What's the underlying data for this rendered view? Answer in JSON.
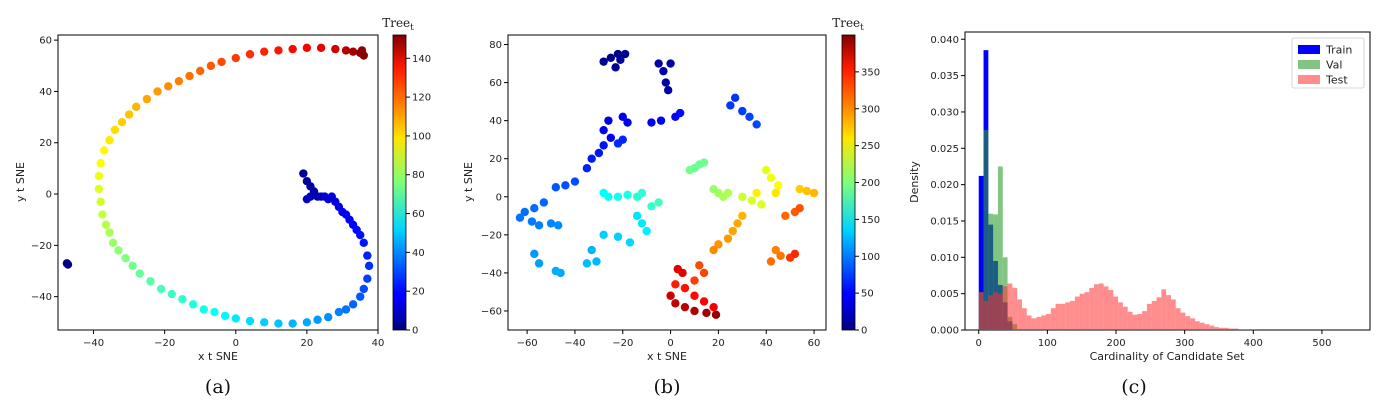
{
  "chart_data": [
    {
      "id": "a",
      "type": "scatter",
      "caption": "(a)",
      "xlabel": "x t SNE",
      "ylabel": "y t SNE",
      "colorbar_label": "Tree_t",
      "xlim": [
        -50,
        40
      ],
      "ylim": [
        -53,
        62
      ],
      "xticks": [
        -40,
        -20,
        0,
        20,
        40
      ],
      "yticks": [
        -40,
        -20,
        0,
        20,
        40,
        60
      ],
      "colorbar_range": [
        0,
        152
      ],
      "colorbar_ticks": [
        0,
        20,
        40,
        60,
        80,
        100,
        120,
        140
      ],
      "colormap": "jet",
      "points": [
        [
          -47.5,
          -27,
          2
        ],
        [
          -47.2,
          -27.5,
          2
        ],
        [
          19,
          8,
          3
        ],
        [
          20,
          5,
          4
        ],
        [
          21,
          3,
          5
        ],
        [
          22,
          1,
          6
        ],
        [
          23,
          -1,
          7
        ],
        [
          24,
          -1,
          8
        ],
        [
          21,
          -1,
          9
        ],
        [
          20,
          -2,
          10
        ],
        [
          25,
          -1,
          11
        ],
        [
          26,
          -2,
          12
        ],
        [
          27,
          -1,
          13
        ],
        [
          28,
          -3,
          14
        ],
        [
          29,
          -5,
          15
        ],
        [
          30,
          -7,
          16
        ],
        [
          31,
          -8,
          17
        ],
        [
          32,
          -10,
          18
        ],
        [
          33,
          -12,
          19
        ],
        [
          34,
          -14,
          20
        ],
        [
          35,
          -16,
          21
        ],
        [
          36,
          -19,
          22
        ],
        [
          37,
          -24,
          24
        ],
        [
          37.5,
          -28,
          26
        ],
        [
          37,
          -33,
          28
        ],
        [
          36,
          -37,
          30
        ],
        [
          35,
          -40,
          32
        ],
        [
          33,
          -43,
          34
        ],
        [
          31,
          -45,
          36
        ],
        [
          29,
          -46,
          38
        ],
        [
          26,
          -48,
          40
        ],
        [
          23,
          -49,
          42
        ],
        [
          20,
          -50,
          44
        ],
        [
          16,
          -50.5,
          46
        ],
        [
          12,
          -50.5,
          48
        ],
        [
          8,
          -50,
          50
        ],
        [
          4,
          -49.5,
          52
        ],
        [
          0,
          -48.5,
          54
        ],
        [
          -3,
          -47.5,
          56
        ],
        [
          -6,
          -46,
          58
        ],
        [
          -9,
          -45,
          60
        ],
        [
          -12,
          -43,
          62
        ],
        [
          -15,
          -41,
          64
        ],
        [
          -18,
          -39,
          66
        ],
        [
          -21,
          -37,
          68
        ],
        [
          -24,
          -34,
          70
        ],
        [
          -27,
          -31,
          72
        ],
        [
          -29,
          -28,
          74
        ],
        [
          -31,
          -25,
          76
        ],
        [
          -33,
          -22,
          78
        ],
        [
          -34.5,
          -19,
          80
        ],
        [
          -35.5,
          -15,
          82
        ],
        [
          -36.5,
          -12,
          84
        ],
        [
          -37.5,
          -8,
          86
        ],
        [
          -38,
          -3,
          88
        ],
        [
          -38.5,
          2,
          90
        ],
        [
          -38.5,
          7,
          92
        ],
        [
          -38,
          12,
          94
        ],
        [
          -37,
          17,
          96
        ],
        [
          -35.5,
          21,
          98
        ],
        [
          -34,
          25,
          100
        ],
        [
          -32,
          28,
          102
        ],
        [
          -30,
          31,
          104
        ],
        [
          -28,
          34,
          106
        ],
        [
          -25,
          37,
          108
        ],
        [
          -22,
          40,
          110
        ],
        [
          -19,
          42,
          112
        ],
        [
          -16,
          44,
          114
        ],
        [
          -13,
          46,
          116
        ],
        [
          -10,
          48,
          118
        ],
        [
          -7,
          50,
          120
        ],
        [
          -4,
          51.5,
          122
        ],
        [
          0,
          53,
          124
        ],
        [
          4,
          54.5,
          126
        ],
        [
          8,
          55.5,
          128
        ],
        [
          12,
          56,
          130
        ],
        [
          16,
          56.5,
          132
        ],
        [
          20,
          57,
          134
        ],
        [
          24,
          57,
          136
        ],
        [
          28,
          56.5,
          140
        ],
        [
          31,
          56,
          144
        ],
        [
          33,
          55.5,
          147
        ],
        [
          35,
          55,
          150
        ],
        [
          36,
          54,
          151
        ],
        [
          35.5,
          56,
          150
        ]
      ]
    },
    {
      "id": "b",
      "type": "scatter",
      "caption": "(b)",
      "xlabel": "x t SNE",
      "ylabel": "y t SNE",
      "colorbar_label": "Tree_t",
      "xlim": [
        -68,
        65
      ],
      "ylim": [
        -70,
        85
      ],
      "xticks": [
        -60,
        -40,
        -20,
        0,
        20,
        40,
        60
      ],
      "yticks": [
        -60,
        -40,
        -20,
        0,
        20,
        40,
        60,
        80
      ],
      "colorbar_range": [
        0,
        400
      ],
      "colorbar_ticks": [
        0,
        50,
        100,
        150,
        200,
        250,
        300,
        350
      ],
      "colormap": "jet",
      "points": [
        [
          -25,
          73,
          5
        ],
        [
          -28,
          71,
          8
        ],
        [
          -22,
          75,
          6
        ],
        [
          -19,
          75,
          7
        ],
        [
          -23,
          68,
          9
        ],
        [
          -21,
          72,
          10
        ],
        [
          -5,
          70,
          12
        ],
        [
          -3,
          66,
          14
        ],
        [
          -2,
          60,
          16
        ],
        [
          -1,
          56,
          15
        ],
        [
          0,
          70,
          11
        ],
        [
          -20,
          42,
          40
        ],
        [
          -18,
          39,
          42
        ],
        [
          -26,
          40,
          38
        ],
        [
          -28,
          35,
          44
        ],
        [
          -25,
          31,
          46
        ],
        [
          -8,
          39,
          48
        ],
        [
          -4,
          40,
          50
        ],
        [
          2,
          42,
          52
        ],
        [
          4,
          44,
          54
        ],
        [
          -28,
          27,
          56
        ],
        [
          -30,
          23,
          58
        ],
        [
          -33,
          20,
          60
        ],
        [
          -35,
          15,
          62
        ],
        [
          -20,
          30,
          64
        ],
        [
          -22,
          28,
          66
        ],
        [
          27,
          52,
          70
        ],
        [
          25,
          48,
          72
        ],
        [
          30,
          45,
          74
        ],
        [
          33,
          42,
          76
        ],
        [
          36,
          38,
          78
        ],
        [
          -40,
          8,
          80
        ],
        [
          -44,
          6,
          82
        ],
        [
          -48,
          5,
          84
        ],
        [
          -53,
          -3,
          90
        ],
        [
          -57,
          -6,
          92
        ],
        [
          -61,
          -8,
          94
        ],
        [
          -63,
          -11,
          96
        ],
        [
          -58,
          -13,
          98
        ],
        [
          -55,
          -15,
          100
        ],
        [
          -50,
          -14,
          102
        ],
        [
          -47,
          -15,
          104
        ],
        [
          -57,
          -30,
          110
        ],
        [
          -55,
          -35,
          112
        ],
        [
          -46,
          -40,
          116
        ],
        [
          -48,
          -39,
          118
        ],
        [
          -33,
          -28,
          120
        ],
        [
          -31,
          -34,
          122
        ],
        [
          -35,
          -35,
          124
        ],
        [
          -28,
          -20,
          130
        ],
        [
          -22,
          -21,
          132
        ],
        [
          -17,
          -24,
          134
        ],
        [
          -14,
          -10,
          140
        ],
        [
          -12,
          -14,
          142
        ],
        [
          -10,
          -18,
          144
        ],
        [
          -28,
          2,
          150
        ],
        [
          -26,
          0,
          152
        ],
        [
          -22,
          0,
          156
        ],
        [
          -18,
          1,
          160
        ],
        [
          -14,
          0,
          166
        ],
        [
          -12,
          2,
          168
        ],
        [
          -8,
          -5,
          172
        ],
        [
          -5,
          -3,
          176
        ],
        [
          10,
          15,
          190
        ],
        [
          12,
          17,
          192
        ],
        [
          14,
          18,
          194
        ],
        [
          8,
          14,
          196
        ],
        [
          18,
          4,
          210
        ],
        [
          20,
          2,
          214
        ],
        [
          22,
          0,
          216
        ],
        [
          24,
          2,
          218
        ],
        [
          30,
          0,
          230
        ],
        [
          34,
          -2,
          234
        ],
        [
          38,
          -4,
          236
        ],
        [
          40,
          14,
          240
        ],
        [
          42,
          10,
          244
        ],
        [
          45,
          6,
          248
        ],
        [
          36,
          2,
          256
        ],
        [
          44,
          2,
          260
        ],
        [
          54,
          4,
          270
        ],
        [
          57,
          3,
          274
        ],
        [
          60,
          2,
          278
        ],
        [
          30,
          -10,
          280
        ],
        [
          28,
          -14,
          284
        ],
        [
          26,
          -18,
          286
        ],
        [
          24,
          -22,
          290
        ],
        [
          20,
          -25,
          292
        ],
        [
          18,
          -28,
          296
        ],
        [
          44,
          -28,
          300
        ],
        [
          46,
          -31,
          304
        ],
        [
          42,
          -34,
          306
        ],
        [
          48,
          -10,
          310
        ],
        [
          52,
          -8,
          314
        ],
        [
          54,
          -6,
          318
        ],
        [
          12,
          -36,
          320
        ],
        [
          14,
          -40,
          324
        ],
        [
          10,
          -44,
          326
        ],
        [
          50,
          -32,
          330
        ],
        [
          52,
          -30,
          334
        ],
        [
          2,
          -46,
          340
        ],
        [
          6,
          -48,
          344
        ],
        [
          10,
          -52,
          346
        ],
        [
          14,
          -55,
          350
        ],
        [
          18,
          -58,
          354
        ],
        [
          3,
          -38,
          360
        ],
        [
          5,
          -40,
          364
        ],
        [
          0,
          -52,
          370
        ],
        [
          2,
          -56,
          374
        ],
        [
          6,
          -58,
          378
        ],
        [
          10,
          -60,
          382
        ],
        [
          15,
          -61,
          386
        ],
        [
          19,
          -62,
          390
        ]
      ]
    },
    {
      "id": "c",
      "type": "bar",
      "caption": "(c)",
      "xlabel": "Cardinality of Candidate Set",
      "ylabel": "Density",
      "xlim": [
        -20,
        570
      ],
      "ylim": [
        0,
        0.041
      ],
      "xticks": [
        0,
        100,
        200,
        300,
        400,
        500
      ],
      "yticks": [
        0.0,
        0.005,
        0.01,
        0.015,
        0.02,
        0.025,
        0.03,
        0.035,
        0.04
      ],
      "ytick_labels": [
        "0.000",
        "0.005",
        "0.010",
        "0.015",
        "0.020",
        "0.025",
        "0.030",
        "0.035",
        "0.040"
      ],
      "legend_position": "top-right",
      "series": [
        {
          "name": "Train",
          "color": "#0000ff",
          "alpha": 1.0,
          "bin_width": 7,
          "bin_start": 0,
          "values": [
            0.0212,
            0.0385,
            0.0145,
            0.0095,
            0.0062,
            0.0038,
            0.0012
          ]
        },
        {
          "name": "Val",
          "color": "#2e9c2e",
          "alpha": 0.6,
          "bin_width": 7,
          "bin_start": 0,
          "values": [
            0.0052,
            0.0275,
            0.016,
            0.0159,
            0.0225,
            0.01,
            0.0018,
            0.0008
          ]
        },
        {
          "name": "Test",
          "color": "#ff3030",
          "alpha": 0.55,
          "bin_width": 7,
          "bin_start": 0,
          "values": [
            0.0052,
            0.004,
            0.0048,
            0.0052,
            0.005,
            0.006,
            0.0064,
            0.0058,
            0.0042,
            0.003,
            0.002,
            0.0016,
            0.0018,
            0.002,
            0.0022,
            0.003,
            0.0036,
            0.0036,
            0.0038,
            0.004,
            0.0046,
            0.005,
            0.0052,
            0.0058,
            0.0063,
            0.0064,
            0.006,
            0.0055,
            0.0046,
            0.0038,
            0.0032,
            0.0025,
            0.0021,
            0.0022,
            0.0026,
            0.0036,
            0.004,
            0.0045,
            0.0056,
            0.0048,
            0.0042,
            0.003,
            0.0024,
            0.0019,
            0.0016,
            0.0012,
            0.001,
            0.0008,
            0.0006,
            0.0004,
            0.0003,
            0.0003,
            0.0002,
            0.0002,
            0.0001,
            0.0001,
            0.0001,
            0.0001
          ]
        }
      ]
    }
  ]
}
